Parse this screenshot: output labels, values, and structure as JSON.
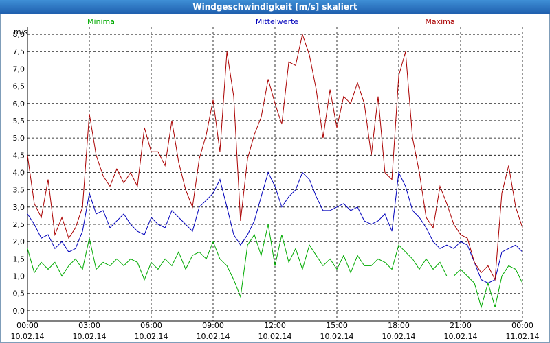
{
  "window": {
    "title": "Windgeschwindigkeit [m/s] skaliert"
  },
  "chart_data": {
    "type": "line",
    "title": "Windgeschwindigkeit [m/s] skaliert",
    "ylabel": "m/s",
    "ylim": [
      -0.3,
      8.2
    ],
    "xlim": [
      0,
      24
    ],
    "grid": true,
    "y_ticks": [
      "0,0",
      "0,5",
      "1,0",
      "1,5",
      "2,0",
      "2,5",
      "3,0",
      "3,5",
      "4,0",
      "4,5",
      "5,0",
      "5,5",
      "6,0",
      "6,5",
      "7,0",
      "7,5",
      "8,0"
    ],
    "x_ticks": [
      {
        "time": "00:00",
        "date": "10.02.14"
      },
      {
        "time": "03:00",
        "date": "10.02.14"
      },
      {
        "time": "06:00",
        "date": "10.02.14"
      },
      {
        "time": "09:00",
        "date": "10.02.14"
      },
      {
        "time": "12:00",
        "date": "10.02.14"
      },
      {
        "time": "15:00",
        "date": "10.02.14"
      },
      {
        "time": "18:00",
        "date": "10.02.14"
      },
      {
        "time": "21:00",
        "date": "10.02.14"
      },
      {
        "time": "00:00",
        "date": "11.02.14"
      }
    ],
    "series": [
      {
        "name": "Minima",
        "color": "#00aa00",
        "points": [
          [
            0.0,
            1.8
          ],
          [
            0.33,
            1.1
          ],
          [
            0.67,
            1.4
          ],
          [
            1.0,
            1.2
          ],
          [
            1.33,
            1.4
          ],
          [
            1.67,
            1.0
          ],
          [
            2.0,
            1.3
          ],
          [
            2.33,
            1.5
          ],
          [
            2.67,
            1.2
          ],
          [
            3.0,
            2.1
          ],
          [
            3.33,
            1.2
          ],
          [
            3.67,
            1.4
          ],
          [
            4.0,
            1.3
          ],
          [
            4.33,
            1.5
          ],
          [
            4.67,
            1.3
          ],
          [
            5.0,
            1.5
          ],
          [
            5.33,
            1.4
          ],
          [
            5.67,
            0.9
          ],
          [
            6.0,
            1.4
          ],
          [
            6.33,
            1.2
          ],
          [
            6.67,
            1.5
          ],
          [
            7.0,
            1.3
          ],
          [
            7.33,
            1.7
          ],
          [
            7.67,
            1.2
          ],
          [
            8.0,
            1.6
          ],
          [
            8.33,
            1.7
          ],
          [
            8.67,
            1.5
          ],
          [
            9.0,
            2.0
          ],
          [
            9.33,
            1.5
          ],
          [
            9.67,
            1.3
          ],
          [
            10.0,
            0.9
          ],
          [
            10.33,
            0.4
          ],
          [
            10.67,
            1.9
          ],
          [
            11.0,
            2.2
          ],
          [
            11.33,
            1.6
          ],
          [
            11.67,
            2.5
          ],
          [
            12.0,
            1.3
          ],
          [
            12.33,
            2.2
          ],
          [
            12.67,
            1.4
          ],
          [
            13.0,
            1.8
          ],
          [
            13.33,
            1.2
          ],
          [
            13.67,
            1.9
          ],
          [
            14.0,
            1.6
          ],
          [
            14.33,
            1.3
          ],
          [
            14.67,
            1.5
          ],
          [
            15.0,
            1.2
          ],
          [
            15.33,
            1.6
          ],
          [
            15.67,
            1.1
          ],
          [
            16.0,
            1.6
          ],
          [
            16.33,
            1.3
          ],
          [
            16.67,
            1.3
          ],
          [
            17.0,
            1.5
          ],
          [
            17.33,
            1.4
          ],
          [
            17.67,
            1.2
          ],
          [
            18.0,
            1.9
          ],
          [
            18.33,
            1.7
          ],
          [
            18.67,
            1.5
          ],
          [
            19.0,
            1.2
          ],
          [
            19.33,
            1.5
          ],
          [
            19.67,
            1.2
          ],
          [
            20.0,
            1.4
          ],
          [
            20.33,
            1.0
          ],
          [
            20.67,
            1.0
          ],
          [
            21.0,
            1.2
          ],
          [
            21.33,
            1.0
          ],
          [
            21.67,
            0.8
          ],
          [
            22.0,
            0.1
          ],
          [
            22.33,
            0.8
          ],
          [
            22.67,
            0.1
          ],
          [
            23.0,
            1.0
          ],
          [
            23.33,
            1.3
          ],
          [
            23.67,
            1.2
          ],
          [
            24.0,
            0.8
          ]
        ]
      },
      {
        "name": "Mittelwerte",
        "color": "#0000bb",
        "points": [
          [
            0.0,
            2.8
          ],
          [
            0.33,
            2.5
          ],
          [
            0.67,
            2.1
          ],
          [
            1.0,
            2.2
          ],
          [
            1.33,
            1.8
          ],
          [
            1.67,
            2.0
          ],
          [
            2.0,
            1.7
          ],
          [
            2.33,
            1.8
          ],
          [
            2.67,
            2.3
          ],
          [
            3.0,
            3.4
          ],
          [
            3.33,
            2.8
          ],
          [
            3.67,
            2.9
          ],
          [
            4.0,
            2.4
          ],
          [
            4.33,
            2.6
          ],
          [
            4.67,
            2.8
          ],
          [
            5.0,
            2.5
          ],
          [
            5.33,
            2.3
          ],
          [
            5.67,
            2.2
          ],
          [
            6.0,
            2.7
          ],
          [
            6.33,
            2.5
          ],
          [
            6.67,
            2.4
          ],
          [
            7.0,
            2.9
          ],
          [
            7.33,
            2.7
          ],
          [
            7.67,
            2.5
          ],
          [
            8.0,
            2.3
          ],
          [
            8.33,
            3.0
          ],
          [
            8.67,
            3.2
          ],
          [
            9.0,
            3.4
          ],
          [
            9.33,
            3.8
          ],
          [
            9.67,
            3.0
          ],
          [
            10.0,
            2.2
          ],
          [
            10.33,
            1.9
          ],
          [
            10.67,
            2.2
          ],
          [
            11.0,
            2.6
          ],
          [
            11.33,
            3.3
          ],
          [
            11.67,
            4.0
          ],
          [
            12.0,
            3.6
          ],
          [
            12.33,
            3.0
          ],
          [
            12.67,
            3.3
          ],
          [
            13.0,
            3.5
          ],
          [
            13.33,
            4.0
          ],
          [
            13.67,
            3.8
          ],
          [
            14.0,
            3.3
          ],
          [
            14.33,
            2.9
          ],
          [
            14.67,
            2.9
          ],
          [
            15.0,
            3.0
          ],
          [
            15.33,
            3.1
          ],
          [
            15.67,
            2.9
          ],
          [
            16.0,
            3.0
          ],
          [
            16.33,
            2.6
          ],
          [
            16.67,
            2.5
          ],
          [
            17.0,
            2.6
          ],
          [
            17.33,
            2.8
          ],
          [
            17.67,
            2.3
          ],
          [
            18.0,
            4.0
          ],
          [
            18.33,
            3.6
          ],
          [
            18.67,
            2.9
          ],
          [
            19.0,
            2.7
          ],
          [
            19.33,
            2.4
          ],
          [
            19.67,
            2.0
          ],
          [
            20.0,
            1.8
          ],
          [
            20.33,
            1.9
          ],
          [
            20.67,
            1.8
          ],
          [
            21.0,
            2.0
          ],
          [
            21.33,
            1.9
          ],
          [
            21.67,
            1.4
          ],
          [
            22.0,
            0.9
          ],
          [
            22.33,
            0.8
          ],
          [
            22.67,
            0.9
          ],
          [
            23.0,
            1.7
          ],
          [
            23.33,
            1.8
          ],
          [
            23.67,
            1.9
          ],
          [
            24.0,
            1.7
          ]
        ]
      },
      {
        "name": "Maxima",
        "color": "#aa0000",
        "points": [
          [
            0.0,
            4.5
          ],
          [
            0.33,
            3.1
          ],
          [
            0.67,
            2.7
          ],
          [
            1.0,
            3.8
          ],
          [
            1.33,
            2.2
          ],
          [
            1.67,
            2.7
          ],
          [
            2.0,
            2.1
          ],
          [
            2.33,
            2.4
          ],
          [
            2.67,
            3.0
          ],
          [
            3.0,
            5.7
          ],
          [
            3.33,
            4.5
          ],
          [
            3.67,
            3.9
          ],
          [
            4.0,
            3.6
          ],
          [
            4.33,
            4.1
          ],
          [
            4.67,
            3.7
          ],
          [
            5.0,
            4.0
          ],
          [
            5.33,
            3.6
          ],
          [
            5.67,
            5.3
          ],
          [
            6.0,
            4.6
          ],
          [
            6.33,
            4.6
          ],
          [
            6.67,
            4.2
          ],
          [
            7.0,
            5.5
          ],
          [
            7.33,
            4.3
          ],
          [
            7.67,
            3.5
          ],
          [
            8.0,
            3.0
          ],
          [
            8.33,
            4.4
          ],
          [
            8.67,
            5.1
          ],
          [
            9.0,
            6.1
          ],
          [
            9.33,
            4.6
          ],
          [
            9.67,
            7.5
          ],
          [
            10.0,
            6.2
          ],
          [
            10.33,
            2.6
          ],
          [
            10.67,
            4.4
          ],
          [
            11.0,
            5.1
          ],
          [
            11.33,
            5.6
          ],
          [
            11.67,
            6.7
          ],
          [
            12.0,
            6.0
          ],
          [
            12.33,
            5.4
          ],
          [
            12.67,
            7.2
          ],
          [
            13.0,
            7.1
          ],
          [
            13.33,
            8.0
          ],
          [
            13.67,
            7.4
          ],
          [
            14.0,
            6.4
          ],
          [
            14.33,
            5.0
          ],
          [
            14.67,
            6.4
          ],
          [
            15.0,
            5.3
          ],
          [
            15.33,
            6.2
          ],
          [
            15.67,
            6.0
          ],
          [
            16.0,
            6.6
          ],
          [
            16.33,
            6.0
          ],
          [
            16.67,
            4.5
          ],
          [
            17.0,
            6.2
          ],
          [
            17.33,
            4.0
          ],
          [
            17.67,
            3.8
          ],
          [
            18.0,
            6.8
          ],
          [
            18.33,
            7.5
          ],
          [
            18.67,
            5.0
          ],
          [
            19.0,
            4.0
          ],
          [
            19.33,
            2.7
          ],
          [
            19.67,
            2.4
          ],
          [
            20.0,
            3.6
          ],
          [
            20.33,
            3.1
          ],
          [
            20.67,
            2.5
          ],
          [
            21.0,
            2.2
          ],
          [
            21.33,
            2.1
          ],
          [
            21.67,
            1.4
          ],
          [
            22.0,
            1.1
          ],
          [
            22.33,
            1.3
          ],
          [
            22.67,
            0.9
          ],
          [
            23.0,
            3.4
          ],
          [
            23.33,
            4.2
          ],
          [
            23.67,
            3.0
          ],
          [
            24.0,
            2.4
          ]
        ]
      }
    ]
  }
}
